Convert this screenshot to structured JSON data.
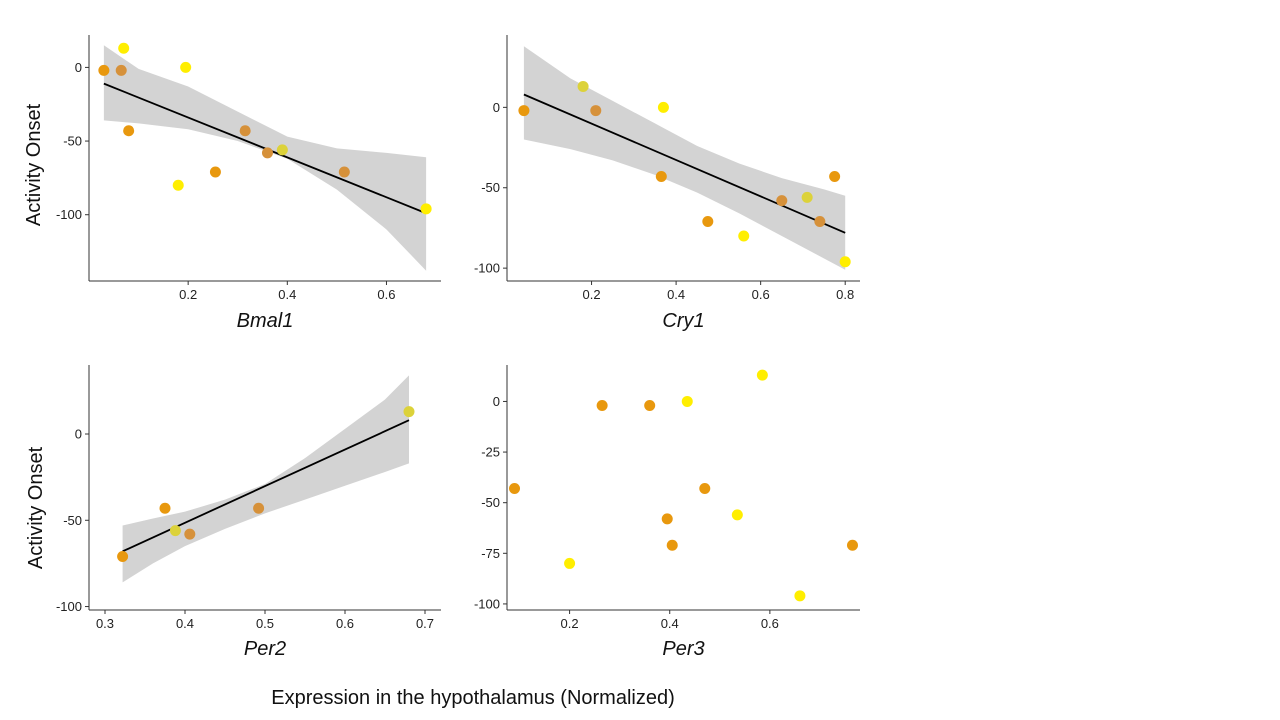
{
  "figure": {
    "ylabel": "Activity Onset",
    "xlabel": "Expression in the hypothalamus (Normalized)"
  },
  "chart_data": [
    {
      "type": "scatter",
      "id": "bmal1",
      "xlabel": "Bmal1",
      "xlim": [
        0.0,
        0.71
      ],
      "ylim": [
        -145,
        22
      ],
      "xticks": [
        0.2,
        0.4,
        0.6
      ],
      "xtick_labels": [
        "0.2",
        "0.4",
        "0.6"
      ],
      "yticks": [
        0,
        -50,
        -100
      ],
      "ytick_labels": [
        "0",
        "-50",
        "-100"
      ],
      "regression": true,
      "fit": {
        "x": [
          0.03,
          0.68
        ],
        "y": [
          -11,
          -99
        ]
      },
      "band": {
        "x": [
          0.03,
          0.1,
          0.2,
          0.3,
          0.4,
          0.5,
          0.6,
          0.68
        ],
        "lower": [
          -36,
          -38,
          -42,
          -50,
          -62,
          -83,
          -110,
          -138
        ],
        "upper": [
          15,
          -1,
          -13,
          -30,
          -47,
          -55,
          -58,
          -61
        ]
      },
      "points": [
        {
          "x": 0.03,
          "y": -2,
          "color": "#e8980e"
        },
        {
          "x": 0.065,
          "y": -2,
          "color": "#d6913a"
        },
        {
          "x": 0.07,
          "y": 13,
          "color": "#ffee00"
        },
        {
          "x": 0.08,
          "y": -43,
          "color": "#e8980e"
        },
        {
          "x": 0.18,
          "y": -80,
          "color": "#ffee00"
        },
        {
          "x": 0.195,
          "y": 0,
          "color": "#ffee00"
        },
        {
          "x": 0.255,
          "y": -71,
          "color": "#e8980e"
        },
        {
          "x": 0.315,
          "y": -43,
          "color": "#d6913a"
        },
        {
          "x": 0.36,
          "y": -58,
          "color": "#d6913a"
        },
        {
          "x": 0.39,
          "y": -56,
          "color": "#dcd23a"
        },
        {
          "x": 0.515,
          "y": -71,
          "color": "#d6913a"
        },
        {
          "x": 0.68,
          "y": -96,
          "color": "#ffee00"
        }
      ]
    },
    {
      "type": "scatter",
      "id": "cry1",
      "xlabel": "Cry1",
      "xlim": [
        0.0,
        0.835
      ],
      "ylim": [
        -108,
        45
      ],
      "xticks": [
        0.2,
        0.4,
        0.6,
        0.8
      ],
      "xtick_labels": [
        "0.2",
        "0.4",
        "0.6",
        "0.8"
      ],
      "yticks": [
        0,
        -50,
        -100
      ],
      "ytick_labels": [
        "0",
        "-50",
        "-100"
      ],
      "regression": true,
      "fit": {
        "x": [
          0.04,
          0.8
        ],
        "y": [
          8,
          -78
        ]
      },
      "band": {
        "x": [
          0.04,
          0.15,
          0.25,
          0.35,
          0.45,
          0.55,
          0.65,
          0.75,
          0.8
        ],
        "lower": [
          -20,
          -26,
          -33,
          -42,
          -53,
          -66,
          -80,
          -94,
          -101
        ],
        "upper": [
          38,
          18,
          4,
          -10,
          -24,
          -35,
          -44,
          -51,
          -55
        ]
      },
      "points": [
        {
          "x": 0.04,
          "y": -2,
          "color": "#e8980e"
        },
        {
          "x": 0.18,
          "y": 13,
          "color": "#dcd23a"
        },
        {
          "x": 0.21,
          "y": -2,
          "color": "#d6913a"
        },
        {
          "x": 0.365,
          "y": -43,
          "color": "#e8980e"
        },
        {
          "x": 0.37,
          "y": 0,
          "color": "#ffee00"
        },
        {
          "x": 0.475,
          "y": -71,
          "color": "#e8980e"
        },
        {
          "x": 0.56,
          "y": -80,
          "color": "#ffee00"
        },
        {
          "x": 0.65,
          "y": -58,
          "color": "#d6913a"
        },
        {
          "x": 0.71,
          "y": -56,
          "color": "#dcd23a"
        },
        {
          "x": 0.74,
          "y": -71,
          "color": "#d6913a"
        },
        {
          "x": 0.775,
          "y": -43,
          "color": "#e8980e"
        },
        {
          "x": 0.8,
          "y": -96,
          "color": "#ffee00"
        }
      ]
    },
    {
      "type": "scatter",
      "id": "per2",
      "xlabel": "Per2",
      "xlim": [
        0.28,
        0.72
      ],
      "ylim": [
        -102,
        40
      ],
      "xticks": [
        0.3,
        0.4,
        0.5,
        0.6,
        0.7
      ],
      "xtick_labels": [
        "0.3",
        "0.4",
        "0.5",
        "0.6",
        "0.7"
      ],
      "yticks": [
        0,
        -50,
        -100
      ],
      "ytick_labels": [
        "0",
        "-50",
        "-100"
      ],
      "regression": true,
      "fit": {
        "x": [
          0.322,
          0.68
        ],
        "y": [
          -68,
          8
        ]
      },
      "band": {
        "x": [
          0.322,
          0.36,
          0.4,
          0.45,
          0.5,
          0.55,
          0.6,
          0.65,
          0.68
        ],
        "lower": [
          -86,
          -75,
          -65,
          -55,
          -46,
          -38,
          -30,
          -22,
          -17
        ],
        "upper": [
          -53,
          -49,
          -45,
          -38,
          -29,
          -14,
          3,
          20,
          34
        ]
      },
      "points": [
        {
          "x": 0.322,
          "y": -71,
          "color": "#e8980e"
        },
        {
          "x": 0.375,
          "y": -43,
          "color": "#e8980e"
        },
        {
          "x": 0.388,
          "y": -56,
          "color": "#dcd23a"
        },
        {
          "x": 0.406,
          "y": -58,
          "color": "#d6913a"
        },
        {
          "x": 0.492,
          "y": -43,
          "color": "#d6913a"
        },
        {
          "x": 0.68,
          "y": 13,
          "color": "#dcd23a"
        }
      ]
    },
    {
      "type": "scatter",
      "id": "per3",
      "xlabel": "Per3",
      "xlim": [
        0.075,
        0.78
      ],
      "ylim": [
        -103,
        18
      ],
      "xticks": [
        0.2,
        0.4,
        0.6
      ],
      "xtick_labels": [
        "0.2",
        "0.4",
        "0.6"
      ],
      "yticks": [
        0,
        -25,
        -50,
        -75,
        -100
      ],
      "ytick_labels": [
        "0",
        "-25",
        "-50",
        "-75",
        "-100"
      ],
      "regression": false,
      "points": [
        {
          "x": 0.09,
          "y": -43,
          "color": "#e8980e"
        },
        {
          "x": 0.2,
          "y": -80,
          "color": "#ffee00"
        },
        {
          "x": 0.265,
          "y": -2,
          "color": "#e8980e"
        },
        {
          "x": 0.36,
          "y": -2,
          "color": "#e8980e"
        },
        {
          "x": 0.395,
          "y": -58,
          "color": "#e8980e"
        },
        {
          "x": 0.405,
          "y": -71,
          "color": "#e8980e"
        },
        {
          "x": 0.435,
          "y": 0,
          "color": "#ffee00"
        },
        {
          "x": 0.47,
          "y": -43,
          "color": "#e8980e"
        },
        {
          "x": 0.535,
          "y": -56,
          "color": "#ffee00"
        },
        {
          "x": 0.585,
          "y": 13,
          "color": "#ffee00"
        },
        {
          "x": 0.66,
          "y": -96,
          "color": "#ffee00"
        },
        {
          "x": 0.765,
          "y": -71,
          "color": "#e8980e"
        }
      ]
    }
  ]
}
